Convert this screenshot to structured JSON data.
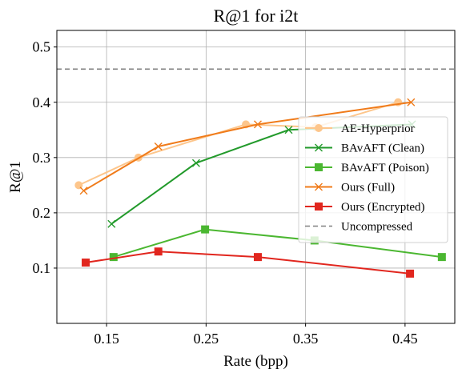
{
  "chart_data": {
    "type": "line",
    "title": "R@1 for i2t",
    "xlabel": "Rate (bpp)",
    "ylabel": "R@1",
    "xlim": [
      0.1,
      0.5
    ],
    "ylim": [
      0.0,
      0.53
    ],
    "xticks": [
      0.15,
      0.25,
      0.35,
      0.45
    ],
    "xtick_labels": [
      "0.15",
      "0.25",
      "0.35",
      "0.45"
    ],
    "yticks": [
      0.1,
      0.2,
      0.3,
      0.4,
      0.5
    ],
    "ytick_labels": [
      "0.1",
      "0.2",
      "0.3",
      "0.4",
      "0.5"
    ],
    "grid": true,
    "legend_position": "center-right",
    "series": [
      {
        "name": "AE-Hyperprior",
        "color": "#fdc68c",
        "marker": "circle",
        "x": [
          0.122,
          0.182,
          0.29,
          0.36,
          0.443
        ],
        "y": [
          0.25,
          0.3,
          0.36,
          0.355,
          0.4
        ]
      },
      {
        "name": "BAvAFT (Clean)",
        "color": "#229a2b",
        "marker": "x",
        "x": [
          0.155,
          0.24,
          0.333,
          0.457
        ],
        "y": [
          0.18,
          0.29,
          0.35,
          0.36
        ]
      },
      {
        "name": "BAvAFT (Poison)",
        "color": "#4bb731",
        "marker": "square",
        "x": [
          0.157,
          0.249,
          0.359,
          0.487
        ],
        "y": [
          0.12,
          0.17,
          0.15,
          0.12
        ]
      },
      {
        "name": "Ours (Full)",
        "color": "#f07b1a",
        "marker": "x",
        "x": [
          0.127,
          0.202,
          0.302,
          0.456
        ],
        "y": [
          0.24,
          0.32,
          0.36,
          0.4
        ]
      },
      {
        "name": "Ours (Encrypted)",
        "color": "#e1261e",
        "marker": "square",
        "x": [
          0.129,
          0.202,
          0.302,
          0.455
        ],
        "y": [
          0.11,
          0.13,
          0.12,
          0.09
        ]
      }
    ],
    "reference_lines": [
      {
        "name": "Uncompressed",
        "color": "#808080",
        "style": "dashed",
        "y": 0.46
      }
    ]
  }
}
